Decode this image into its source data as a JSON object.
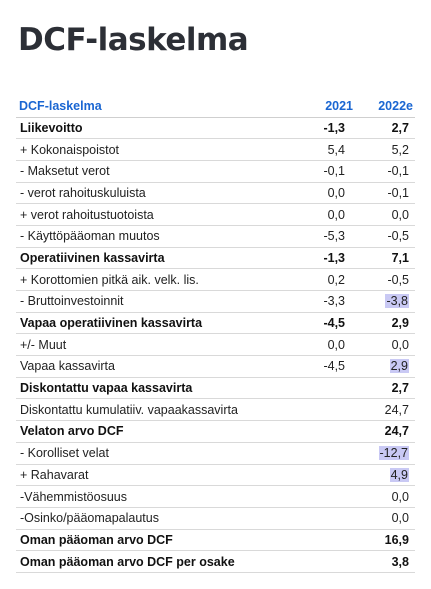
{
  "title": "DCF-laskelma",
  "table": {
    "headers": [
      "DCF-laskelma",
      "2021",
      "2022e"
    ],
    "rows": [
      {
        "label": "Liikevoitto",
        "y2021": "-1,3",
        "y2022": "2,7",
        "bold": true,
        "hl": false
      },
      {
        "label": "+ Kokonaispoistot",
        "y2021": "5,4",
        "y2022": "5,2",
        "bold": false,
        "hl": false
      },
      {
        "label": "- Maksetut verot",
        "y2021": "-0,1",
        "y2022": "-0,1",
        "bold": false,
        "hl": false
      },
      {
        "label": "- verot rahoituskuluista",
        "y2021": "0,0",
        "y2022": "-0,1",
        "bold": false,
        "hl": false
      },
      {
        "label": "+ verot rahoitustuotoista",
        "y2021": "0,0",
        "y2022": "0,0",
        "bold": false,
        "hl": false
      },
      {
        "label": "- Käyttöpääoman muutos",
        "y2021": "-5,3",
        "y2022": "-0,5",
        "bold": false,
        "hl": false
      },
      {
        "label": "Operatiivinen kassavirta",
        "y2021": "-1,3",
        "y2022": "7,1",
        "bold": true,
        "hl": false
      },
      {
        "label": "+ Korottomien pitkä aik. velk. lis.",
        "y2021": "0,2",
        "y2022": "-0,5",
        "bold": false,
        "hl": false
      },
      {
        "label": "- Bruttoinvestoinnit",
        "y2021": "-3,3",
        "y2022": "-3,8",
        "bold": false,
        "hl": true
      },
      {
        "label": "Vapaa operatiivinen kassavirta",
        "y2021": "-4,5",
        "y2022": "2,9",
        "bold": true,
        "hl": false
      },
      {
        "label": "+/- Muut",
        "y2021": "0,0",
        "y2022": "0,0",
        "bold": false,
        "hl": false
      },
      {
        "label": "Vapaa kassavirta",
        "y2021": "-4,5",
        "y2022": "2,9",
        "bold": false,
        "hl": true
      },
      {
        "label": "Diskontattu vapaa kassavirta",
        "y2021": "",
        "y2022": "2,7",
        "bold": true,
        "hl": false
      },
      {
        "label": "Diskontattu kumulatiiv. vapaakassavirta",
        "y2021": "",
        "y2022": "24,7",
        "bold": false,
        "hl": false
      },
      {
        "label": "Velaton arvo DCF",
        "y2021": "",
        "y2022": "24,7",
        "bold": true,
        "hl": false
      },
      {
        "label": "- Korolliset velat",
        "y2021": "",
        "y2022": "-12,7",
        "bold": false,
        "hl": true
      },
      {
        "label": "+ Rahavarat",
        "y2021": "",
        "y2022": "4,9",
        "bold": false,
        "hl": true
      },
      {
        "label": "-Vähemmistöosuus",
        "y2021": "",
        "y2022": "0,0",
        "bold": false,
        "hl": false
      },
      {
        "label": "-Osinko/pääomapalautus",
        "y2021": "",
        "y2022": "0,0",
        "bold": false,
        "hl": false
      },
      {
        "label": "Oman pääoman arvo DCF",
        "y2021": "",
        "y2022": "16,9",
        "bold": true,
        "hl": false
      },
      {
        "label": "Oman pääoman arvo DCF per osake",
        "y2021": "",
        "y2022": "3,8",
        "bold": true,
        "hl": false
      }
    ]
  }
}
